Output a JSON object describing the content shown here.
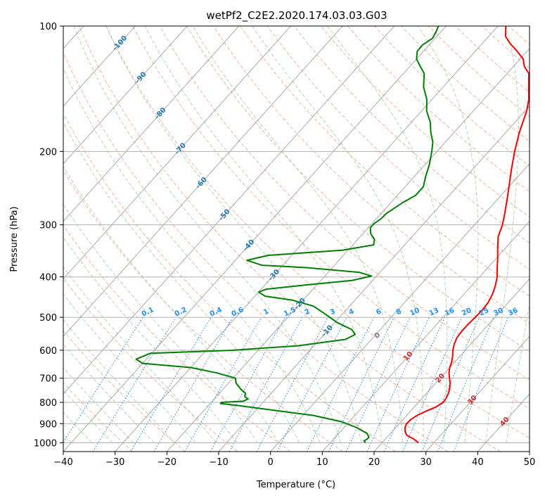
{
  "chart_data": {
    "type": "line",
    "title": "wetPf2_C2E2.2020.174.03.03.G03",
    "xlabel": "Temperature (°C)",
    "ylabel": "Pressure (hPa)",
    "xlim": [
      -40,
      50
    ],
    "ylim": [
      1050,
      100
    ],
    "x_ticks": [
      "−40",
      "−30",
      "−20",
      "−10",
      "0",
      "10",
      "20",
      "30",
      "40",
      "50"
    ],
    "y_ticks": [
      "100",
      "200",
      "300",
      "400",
      "500",
      "600",
      "700",
      "800",
      "900",
      "1000"
    ],
    "skew": "skew-T log-p",
    "series": [
      {
        "name": "temperature",
        "color": "#ff0000",
        "points": [
          [
            27,
            1000
          ],
          [
            25.5,
            980
          ],
          [
            23.5,
            960
          ],
          [
            22.5,
            940
          ],
          [
            21.8,
            920
          ],
          [
            21.4,
            900
          ],
          [
            21.5,
            880
          ],
          [
            22,
            860
          ],
          [
            23,
            840
          ],
          [
            24.2,
            820
          ],
          [
            24.8,
            800
          ],
          [
            24.6,
            780
          ],
          [
            24.2,
            760
          ],
          [
            23.6,
            740
          ],
          [
            22.8,
            720
          ],
          [
            21.8,
            700
          ],
          [
            20.8,
            680
          ],
          [
            20,
            660
          ],
          [
            19.4,
            640
          ],
          [
            18.6,
            620
          ],
          [
            17.6,
            600
          ],
          [
            16.8,
            580
          ],
          [
            16.2,
            560
          ],
          [
            16,
            540
          ],
          [
            16,
            520
          ],
          [
            16.2,
            500
          ],
          [
            16.3,
            480
          ],
          [
            16.1,
            460
          ],
          [
            15.5,
            440
          ],
          [
            14.6,
            420
          ],
          [
            13.4,
            400
          ],
          [
            11.8,
            380
          ],
          [
            10.2,
            360
          ],
          [
            8.4,
            340
          ],
          [
            6.6,
            320
          ],
          [
            5.4,
            300
          ],
          [
            3.7,
            280
          ],
          [
            1.8,
            260
          ],
          [
            -0.3,
            240
          ],
          [
            -2.6,
            220
          ],
          [
            -5,
            200
          ],
          [
            -7.4,
            180
          ],
          [
            -9.7,
            160
          ],
          [
            -11.3,
            150
          ],
          [
            -13.5,
            140
          ],
          [
            -15.8,
            130
          ],
          [
            -17.9,
            125
          ],
          [
            -19.4,
            120
          ],
          [
            -21.9,
            115
          ],
          [
            -24.7,
            110
          ],
          [
            -26.7,
            106
          ],
          [
            -28.5,
            100
          ]
        ]
      },
      {
        "name": "dewpoint",
        "color": "#008000",
        "points": [
          [
            16.8,
            1000
          ],
          [
            16.2,
            990
          ],
          [
            16.5,
            980
          ],
          [
            16.5,
            970
          ],
          [
            15.5,
            950
          ],
          [
            12.5,
            920
          ],
          [
            8.5,
            890
          ],
          [
            2,
            860
          ],
          [
            -5,
            840
          ],
          [
            -14,
            815
          ],
          [
            -18,
            805
          ],
          [
            -18,
            800
          ],
          [
            -14,
            795
          ],
          [
            -13.5,
            785
          ],
          [
            -14.5,
            775
          ],
          [
            -15,
            760
          ],
          [
            -16.5,
            745
          ],
          [
            -18.5,
            720
          ],
          [
            -19.5,
            700
          ],
          [
            -24,
            680
          ],
          [
            -30,
            660
          ],
          [
            -40,
            645
          ],
          [
            -42,
            630
          ],
          [
            -40.3,
            610
          ],
          [
            -25,
            600
          ],
          [
            -13,
            585
          ],
          [
            -5,
            565
          ],
          [
            -4,
            550
          ],
          [
            -5.5,
            535
          ],
          [
            -9.5,
            515
          ],
          [
            -13.5,
            490
          ],
          [
            -17,
            470
          ],
          [
            -22,
            455
          ],
          [
            -28,
            445
          ],
          [
            -30,
            435
          ],
          [
            -29,
            428
          ],
          [
            -22,
            418
          ],
          [
            -14,
            408
          ],
          [
            -11,
            398
          ],
          [
            -14,
            390
          ],
          [
            -25,
            380
          ],
          [
            -34,
            375
          ],
          [
            -37.8,
            365
          ],
          [
            -34.5,
            355
          ],
          [
            -21,
            345
          ],
          [
            -16,
            335
          ],
          [
            -16.8,
            325
          ],
          [
            -18.5,
            315
          ],
          [
            -19.6,
            305
          ],
          [
            -19.6,
            298
          ],
          [
            -19.1,
            290
          ],
          [
            -19,
            282
          ],
          [
            -18.4,
            274
          ],
          [
            -17.7,
            265
          ],
          [
            -16.5,
            255
          ],
          [
            -16.5,
            243
          ],
          [
            -17.8,
            230
          ],
          [
            -19.2,
            215
          ],
          [
            -21,
            200
          ],
          [
            -22.4,
            190
          ],
          [
            -24.5,
            180
          ],
          [
            -26.4,
            170
          ],
          [
            -29,
            160
          ],
          [
            -31,
            150
          ],
          [
            -33.8,
            140
          ],
          [
            -36,
            130
          ],
          [
            -38,
            125
          ],
          [
            -40,
            120
          ],
          [
            -41.2,
            115
          ],
          [
            -41.3,
            111
          ],
          [
            -40.5,
            107
          ],
          [
            -41,
            103
          ],
          [
            -41.5,
            100
          ]
        ]
      }
    ],
    "mixing_ratio_labels": [
      "0.1",
      "0.2",
      "0.4",
      "0.6",
      "1",
      "1.5",
      "2",
      "3",
      "4",
      "6",
      "8",
      "10",
      "13",
      "16",
      "20",
      "25",
      "30",
      "36"
    ],
    "isotherm_labels_blue": [
      "-100",
      "-90",
      "-80",
      "-70",
      "-60",
      "-50",
      "-40",
      "-30",
      "-20",
      "-10"
    ],
    "isotherm_labels_red": [
      "10",
      "20",
      "30",
      "40"
    ],
    "isotherm_label_zero": "0",
    "colors": {
      "temperature": "#ff0000",
      "dewpoint": "#008000",
      "dry_adiabat": "#f3a08a",
      "moist_adiabat": "#9ecf9e",
      "mixing_ratio": "#1e88e5",
      "isotherm": "#7f7f7f",
      "isobar": "#b0b0b0",
      "label_blue": "#1f77b4",
      "label_red": "#d62728",
      "label_mixing": "#1e90ff",
      "label_zero": "#808080"
    }
  }
}
